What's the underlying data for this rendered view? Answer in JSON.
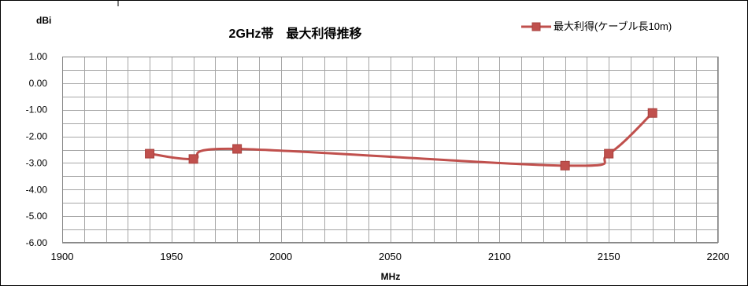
{
  "chart_data": {
    "type": "line",
    "title": "2GHz帯　最大利得推移",
    "ylabel": "dBi",
    "xlabel": "MHz",
    "xlim": [
      1900,
      2200
    ],
    "ylim": [
      -6.0,
      1.0
    ],
    "x_ticks": [
      1900,
      1950,
      2000,
      2050,
      2100,
      2150,
      2200
    ],
    "x_tick_labels": [
      "1900",
      "1950",
      "2000",
      "2050",
      "2100",
      "2150",
      "2200"
    ],
    "y_ticks": [
      1.0,
      0.0,
      -1.0,
      -2.0,
      -3.0,
      -4.0,
      -5.0,
      -6.0
    ],
    "y_tick_labels": [
      "1.00",
      "0.00",
      "-1.00",
      "-2.00",
      "-3.00",
      "-4.00",
      "-5.00",
      "-6.00"
    ],
    "grid": true,
    "legend_position": "top-right",
    "series": [
      {
        "name": "最大利得(ケーブル長10m)",
        "color": "#c0504d",
        "marker": "square",
        "smooth": true,
        "x": [
          1940,
          1960,
          1980,
          2130,
          2150,
          2170
        ],
        "y": [
          -2.65,
          -2.85,
          -2.47,
          -3.1,
          -2.65,
          -1.12
        ]
      }
    ]
  }
}
